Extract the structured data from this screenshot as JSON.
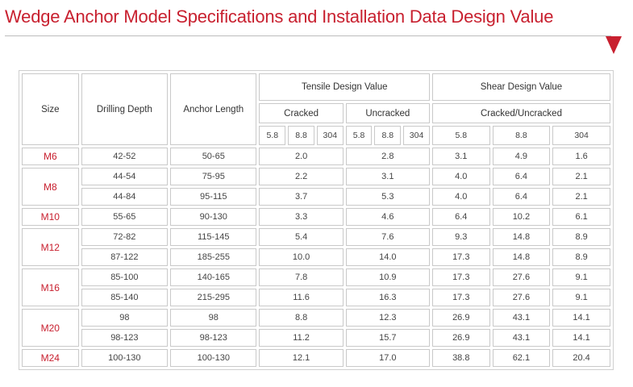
{
  "title": "Wedge Anchor Model Specifications and Installation Data Design Value",
  "headers": {
    "size": "Size",
    "drilling_depth": "Drilling Depth",
    "anchor_length": "Anchor Length",
    "tensile": "Tensile Design Value",
    "shear": "Shear Design Value",
    "cracked": "Cracked",
    "uncracked": "Uncracked",
    "cracked_uncracked": "Cracked/Uncracked",
    "grades": [
      "5.8",
      "8.8",
      "304"
    ]
  },
  "rows": [
    {
      "size": "M6",
      "depth": "42-52",
      "length": "50-65",
      "cracked": "2.0",
      "uncracked": "2.8",
      "s58": "3.1",
      "s88": "4.9",
      "s304": "1.6"
    },
    {
      "size": "M8",
      "depth": "44-54",
      "length": "75-95",
      "cracked": "2.2",
      "uncracked": "3.1",
      "s58": "4.0",
      "s88": "6.4",
      "s304": "2.1"
    },
    {
      "size": "",
      "depth": "44-84",
      "length": "95-115",
      "cracked": "3.7",
      "uncracked": "5.3",
      "s58": "4.0",
      "s88": "6.4",
      "s304": "2.1"
    },
    {
      "size": "M10",
      "depth": "55-65",
      "length": "90-130",
      "cracked": "3.3",
      "uncracked": "4.6",
      "s58": "6.4",
      "s88": "10.2",
      "s304": "6.1"
    },
    {
      "size": "M12",
      "depth": "72-82",
      "length": "115-145",
      "cracked": "5.4",
      "uncracked": "7.6",
      "s58": "9.3",
      "s88": "14.8",
      "s304": "8.9"
    },
    {
      "size": "",
      "depth": "87-122",
      "length": "185-255",
      "cracked": "10.0",
      "uncracked": "14.0",
      "s58": "17.3",
      "s88": "14.8",
      "s304": "8.9"
    },
    {
      "size": "M16",
      "depth": "85-100",
      "length": "140-165",
      "cracked": "7.8",
      "uncracked": "10.9",
      "s58": "17.3",
      "s88": "27.6",
      "s304": "9.1"
    },
    {
      "size": "",
      "depth": "85-140",
      "length": "215-295",
      "cracked": "11.6",
      "uncracked": "16.3",
      "s58": "17.3",
      "s88": "27.6",
      "s304": "9.1"
    },
    {
      "size": "M20",
      "depth": "98",
      "length": "98",
      "cracked": "8.8",
      "uncracked": "12.3",
      "s58": "26.9",
      "s88": "43.1",
      "s304": "14.1"
    },
    {
      "size": "",
      "depth": "98-123",
      "length": "98-123",
      "cracked": "11.2",
      "uncracked": "15.7",
      "s58": "26.9",
      "s88": "43.1",
      "s304": "14.1"
    },
    {
      "size": "M24",
      "depth": "100-130",
      "length": "100-130",
      "cracked": "12.1",
      "uncracked": "17.0",
      "s58": "38.8",
      "s88": "62.1",
      "s304": "20.4"
    }
  ]
}
